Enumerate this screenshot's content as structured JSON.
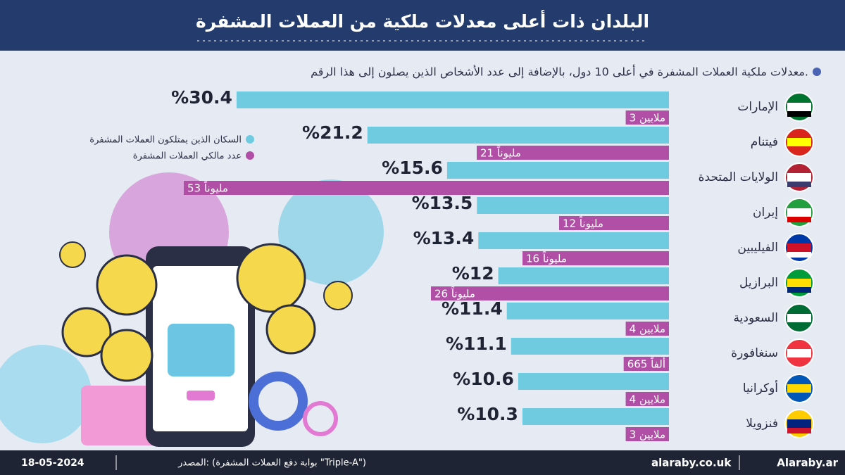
{
  "chart_data": {
    "type": "bar",
    "title": "البلدان ذات أعلى معدلات ملكية من العملات المشفرة",
    "subtitle": "معدلات ملكية العملات المشفرة في أعلى 10 دول، بالإضافة إلى عدد الأشخاص الذين يصلون إلى هذا الرقم.",
    "legend": "top-left",
    "categories": [
      "الإمارات",
      "فيتنام",
      "الولايات المتحدة",
      "إيران",
      "الفيليبين",
      "البرازيل",
      "السعودية",
      "سنغافورة",
      "أوكرانيا",
      "فنزويلا"
    ],
    "series": [
      {
        "name": "السكان الذين يمتلكون العملات المشفرة",
        "color": "#6fcbe0",
        "values": [
          30.4,
          21.2,
          15.6,
          13.5,
          13.4,
          12,
          11.4,
          11.1,
          10.6,
          10.3
        ],
        "value_labels": [
          "%30.4",
          "%21.2",
          "%15.6",
          "%13.5",
          "%13.4",
          "%12",
          "%11.4",
          "%11.1",
          "%10.6",
          "%10.3"
        ]
      },
      {
        "name": "عدد مالكي العملات المشفرة",
        "color": "#b04fa5",
        "values": [
          3,
          21,
          53,
          12,
          16,
          26,
          4,
          0.665,
          4,
          3
        ],
        "value_labels": [
          "3 ملايين",
          "21 مليوناً",
          "53 مليوناً",
          "12 مليوناً",
          "16 مليوناً",
          "26 مليوناً",
          "4 ملايين",
          "665 ألفاً",
          "4 ملايين",
          "3 ملايين"
        ]
      }
    ]
  },
  "footer": {
    "date": "18-05-2024",
    "source": "المصدر: (بوابة دفع العملات المشفرة \"Triple-A\")",
    "site": "alaraby.co.uk",
    "social": "Alaraby.ar"
  }
}
